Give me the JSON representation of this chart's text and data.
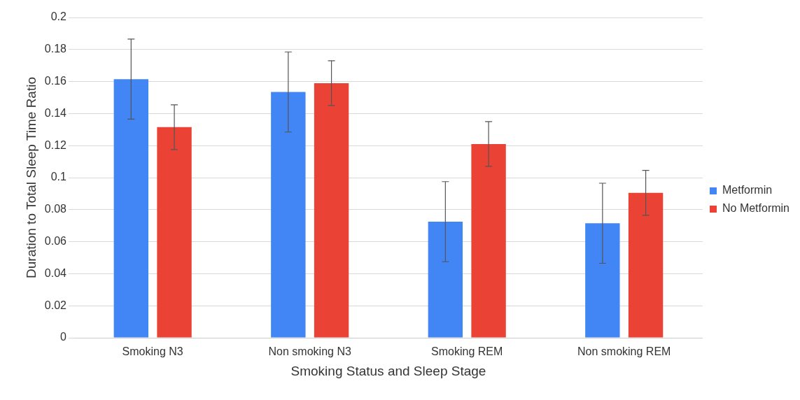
{
  "chart_data": {
    "type": "bar",
    "xlabel": "Smoking Status and Sleep Stage",
    "ylabel": "Duration to Total Sleep Time Ratio",
    "categories": [
      "Smoking N3",
      "Non smoking N3",
      "Smoking REM",
      "Non smoking REM"
    ],
    "series": [
      {
        "name": "Metformin",
        "color": "#4285f4",
        "values": [
          0.1615,
          0.1535,
          0.0725,
          0.0715
        ],
        "errors": [
          0.025,
          0.025,
          0.025,
          0.025
        ]
      },
      {
        "name": "No Metformin",
        "color": "#ea4335",
        "values": [
          0.1315,
          0.159,
          0.121,
          0.0905
        ],
        "errors": [
          0.014,
          0.014,
          0.014,
          0.014
        ]
      }
    ],
    "ylim": [
      0,
      0.2
    ],
    "yticks": [
      0,
      0.02,
      0.04,
      0.06,
      0.08,
      0.1,
      0.12,
      0.14,
      0.16,
      0.18,
      0.2
    ],
    "grid": "y",
    "legend": "right"
  }
}
